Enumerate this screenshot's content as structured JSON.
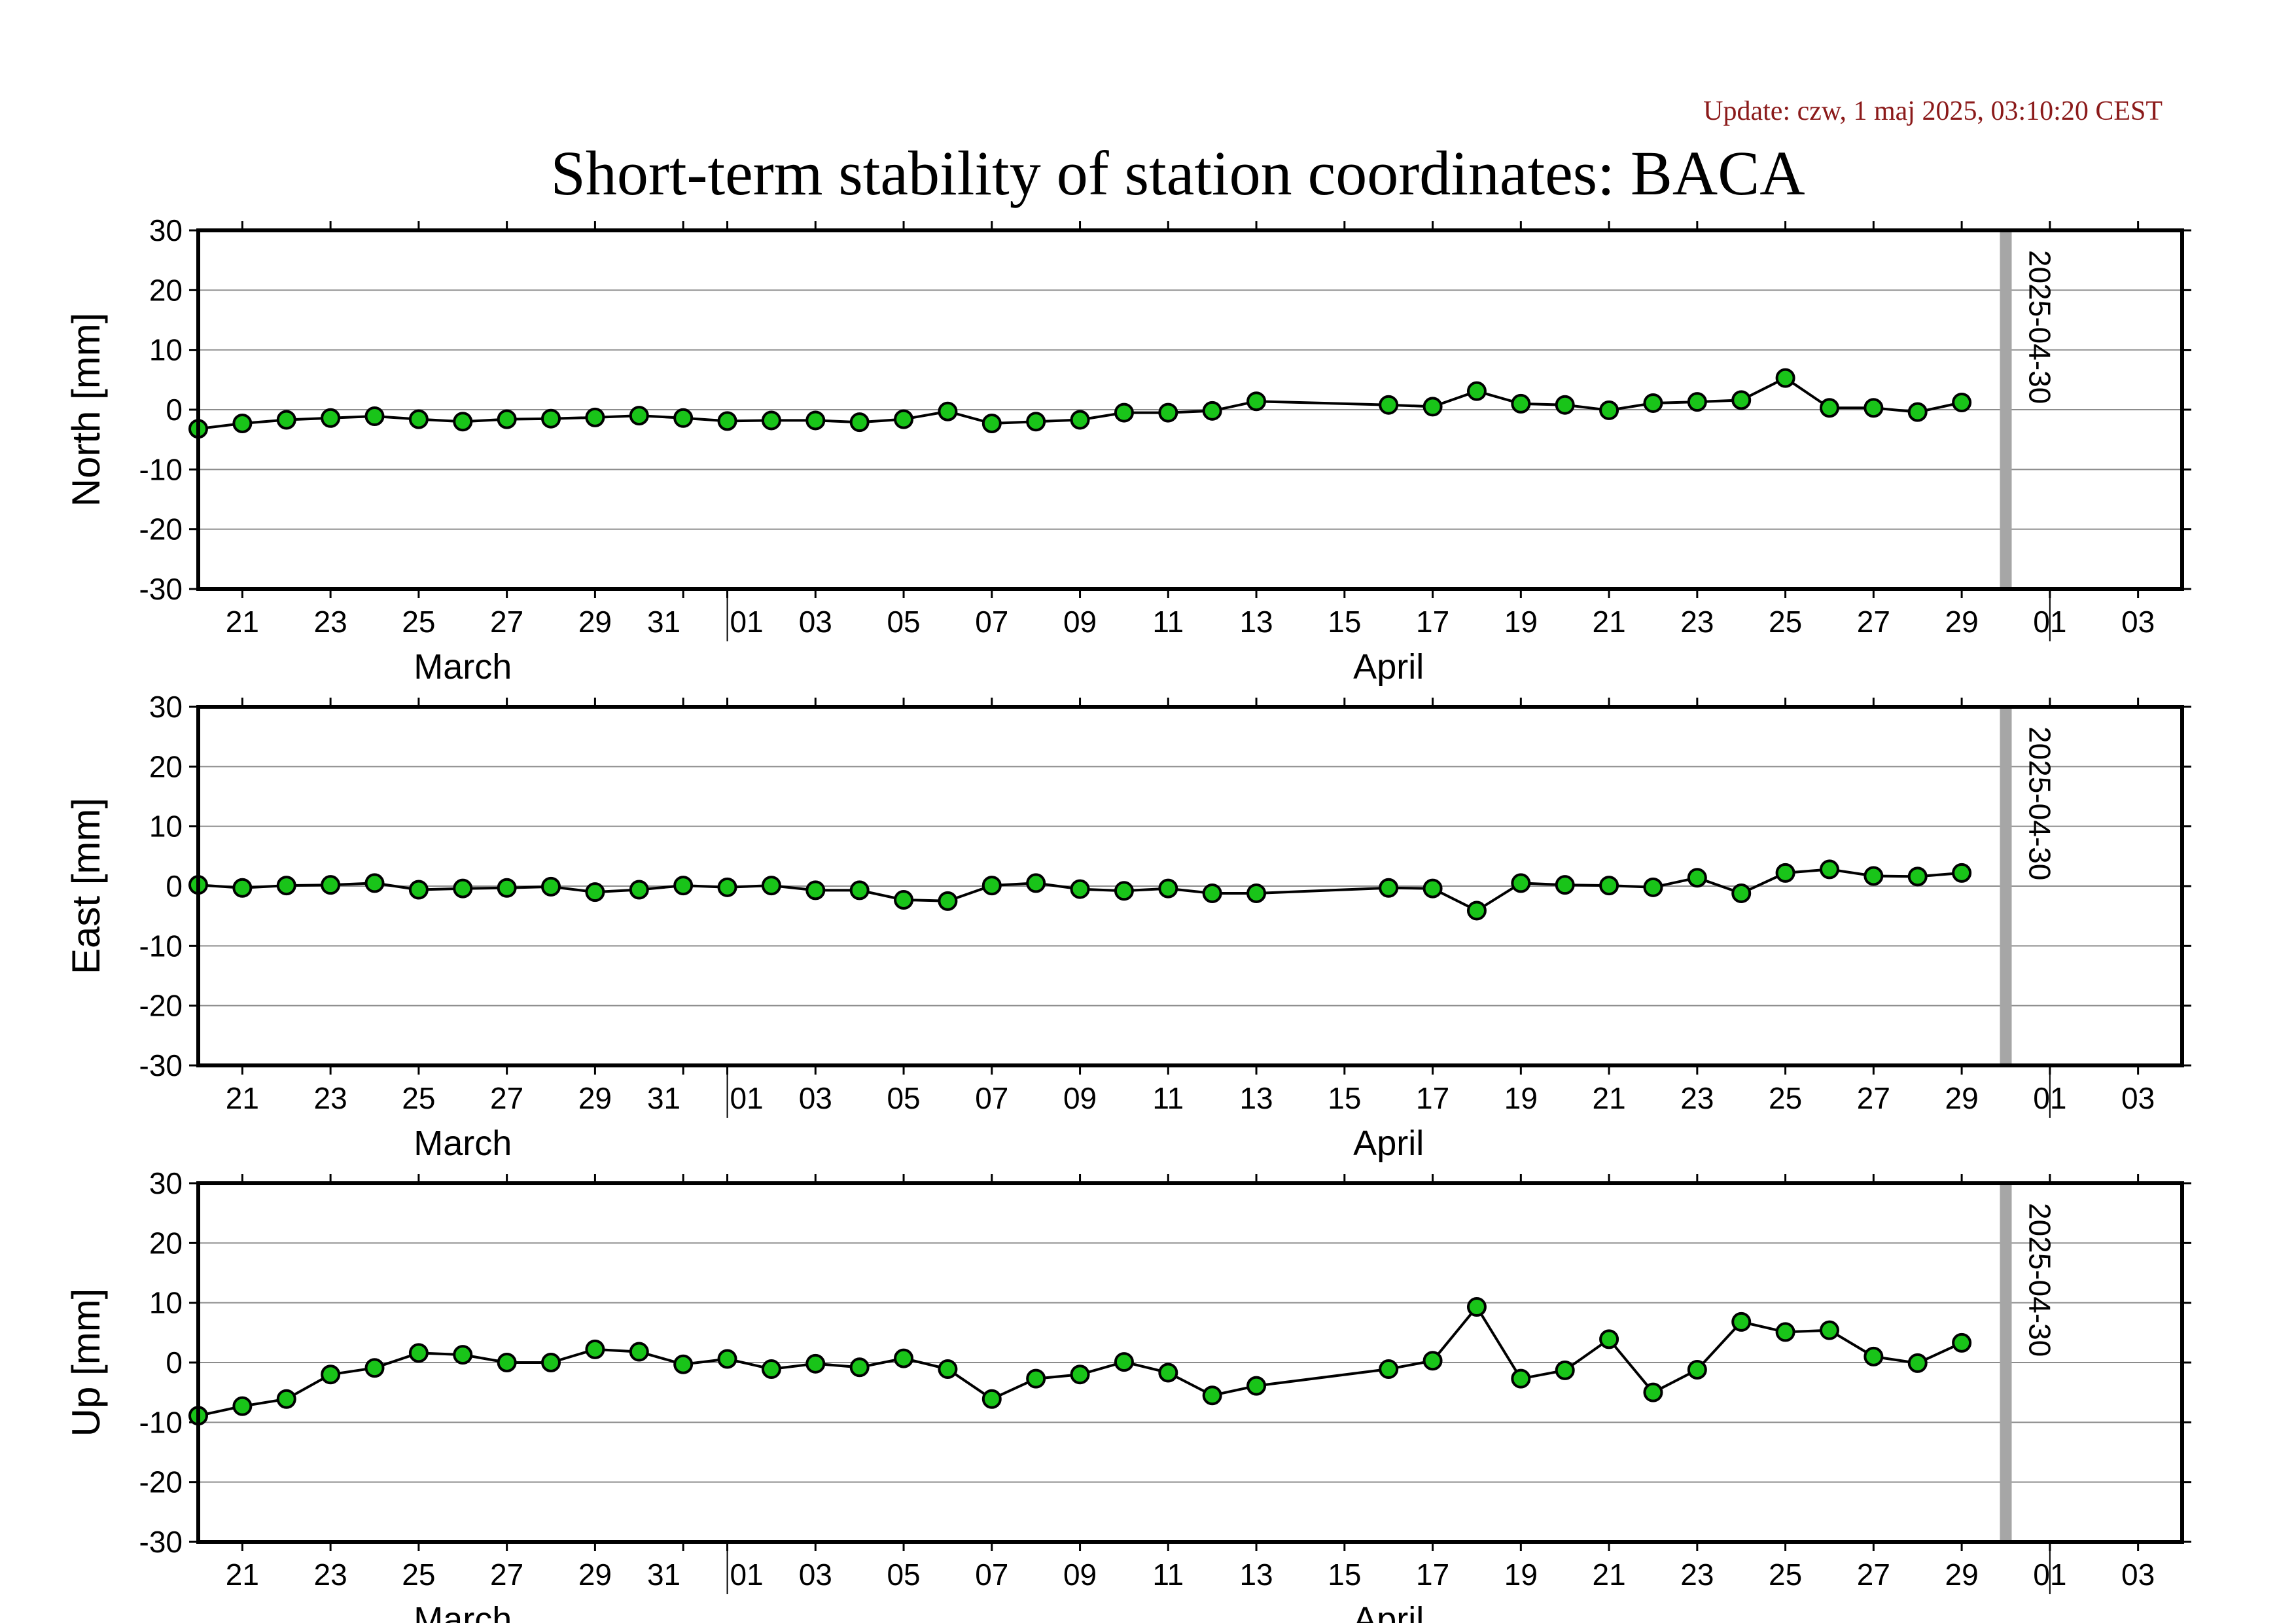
{
  "update_text": "Update: czw, 1 maj 2025, 03:10:20 CEST",
  "chart_data": {
    "type": "scatter",
    "title": "Short-term stability of station coordinates: BACA",
    "x_axis": {
      "range": [
        "2025-03-20",
        "2025-05-04"
      ],
      "tick_labels": [
        {
          "date": "2025-03-21",
          "label": "21"
        },
        {
          "date": "2025-03-23",
          "label": "23"
        },
        {
          "date": "2025-03-25",
          "label": "25"
        },
        {
          "date": "2025-03-27",
          "label": "27"
        },
        {
          "date": "2025-03-29",
          "label": "29"
        },
        {
          "date": "2025-03-31",
          "label": "31"
        },
        {
          "date": "2025-04-01",
          "label": "01"
        },
        {
          "date": "2025-04-03",
          "label": "03"
        },
        {
          "date": "2025-04-05",
          "label": "05"
        },
        {
          "date": "2025-04-07",
          "label": "07"
        },
        {
          "date": "2025-04-09",
          "label": "09"
        },
        {
          "date": "2025-04-11",
          "label": "11"
        },
        {
          "date": "2025-04-13",
          "label": "13"
        },
        {
          "date": "2025-04-15",
          "label": "15"
        },
        {
          "date": "2025-04-17",
          "label": "17"
        },
        {
          "date": "2025-04-19",
          "label": "19"
        },
        {
          "date": "2025-04-21",
          "label": "21"
        },
        {
          "date": "2025-04-23",
          "label": "23"
        },
        {
          "date": "2025-04-25",
          "label": "25"
        },
        {
          "date": "2025-04-27",
          "label": "27"
        },
        {
          "date": "2025-04-29",
          "label": "29"
        },
        {
          "date": "2025-05-01",
          "label": "01"
        },
        {
          "date": "2025-05-03",
          "label": "03"
        }
      ],
      "month_labels": [
        {
          "date": "2025-03-26",
          "label": "March"
        },
        {
          "date": "2025-04-16",
          "label": "April"
        }
      ],
      "month_boundaries": [
        "2025-04-01",
        "2025-05-01"
      ]
    },
    "marker_date": "2025-04-30",
    "marker_label": "2025-04-30",
    "panels": [
      {
        "ylabel": "North [mm]",
        "ylim": [
          -30,
          30
        ],
        "yticks": [
          30,
          20,
          10,
          0,
          -10,
          -20,
          -30
        ],
        "grid": true,
        "points": [
          [
            "2025-03-20",
            -3.2
          ],
          [
            "2025-03-21",
            -2.3
          ],
          [
            "2025-03-22",
            -1.7
          ],
          [
            "2025-03-23",
            -1.4
          ],
          [
            "2025-03-24",
            -1.1
          ],
          [
            "2025-03-25",
            -1.6
          ],
          [
            "2025-03-26",
            -2.0
          ],
          [
            "2025-03-27",
            -1.6
          ],
          [
            "2025-03-28",
            -1.5
          ],
          [
            "2025-03-29",
            -1.3
          ],
          [
            "2025-03-30",
            -1.0
          ],
          [
            "2025-03-31",
            -1.4
          ],
          [
            "2025-04-01",
            -1.9
          ],
          [
            "2025-04-02",
            -1.8
          ],
          [
            "2025-04-03",
            -1.8
          ],
          [
            "2025-04-04",
            -2.1
          ],
          [
            "2025-04-05",
            -1.6
          ],
          [
            "2025-04-06",
            -0.3
          ],
          [
            "2025-04-07",
            -2.3
          ],
          [
            "2025-04-08",
            -2.0
          ],
          [
            "2025-04-09",
            -1.7
          ],
          [
            "2025-04-10",
            -0.5
          ],
          [
            "2025-04-11",
            -0.5
          ],
          [
            "2025-04-12",
            -0.2
          ],
          [
            "2025-04-13",
            1.4
          ],
          [
            "2025-04-16",
            0.8
          ],
          [
            "2025-04-17",
            0.5
          ],
          [
            "2025-04-18",
            3.1
          ],
          [
            "2025-04-19",
            1.0
          ],
          [
            "2025-04-20",
            0.8
          ],
          [
            "2025-04-21",
            -0.1
          ],
          [
            "2025-04-22",
            1.1
          ],
          [
            "2025-04-23",
            1.3
          ],
          [
            "2025-04-24",
            1.6
          ],
          [
            "2025-04-25",
            5.3
          ],
          [
            "2025-04-26",
            0.3
          ],
          [
            "2025-04-27",
            0.3
          ],
          [
            "2025-04-28",
            -0.4
          ],
          [
            "2025-04-29",
            1.2
          ]
        ]
      },
      {
        "ylabel": "East [mm]",
        "ylim": [
          -30,
          30
        ],
        "yticks": [
          30,
          20,
          10,
          0,
          -10,
          -20,
          -30
        ],
        "grid": true,
        "points": [
          [
            "2025-03-20",
            0.2
          ],
          [
            "2025-03-21",
            -0.3
          ],
          [
            "2025-03-22",
            0.1
          ],
          [
            "2025-03-23",
            0.2
          ],
          [
            "2025-03-24",
            0.5
          ],
          [
            "2025-03-25",
            -0.6
          ],
          [
            "2025-03-26",
            -0.4
          ],
          [
            "2025-03-27",
            -0.3
          ],
          [
            "2025-03-28",
            -0.1
          ],
          [
            "2025-03-29",
            -1.0
          ],
          [
            "2025-03-30",
            -0.6
          ],
          [
            "2025-03-31",
            0.1
          ],
          [
            "2025-04-01",
            -0.2
          ],
          [
            "2025-04-02",
            0.1
          ],
          [
            "2025-04-03",
            -0.7
          ],
          [
            "2025-04-04",
            -0.7
          ],
          [
            "2025-04-05",
            -2.3
          ],
          [
            "2025-04-06",
            -2.5
          ],
          [
            "2025-04-07",
            0.1
          ],
          [
            "2025-04-08",
            0.5
          ],
          [
            "2025-04-09",
            -0.5
          ],
          [
            "2025-04-10",
            -0.8
          ],
          [
            "2025-04-11",
            -0.4
          ],
          [
            "2025-04-12",
            -1.2
          ],
          [
            "2025-04-13",
            -1.2
          ],
          [
            "2025-04-16",
            -0.3
          ],
          [
            "2025-04-17",
            -0.4
          ],
          [
            "2025-04-18",
            -4.1
          ],
          [
            "2025-04-19",
            0.5
          ],
          [
            "2025-04-20",
            0.2
          ],
          [
            "2025-04-21",
            0.1
          ],
          [
            "2025-04-22",
            -0.2
          ],
          [
            "2025-04-23",
            1.4
          ],
          [
            "2025-04-24",
            -1.2
          ],
          [
            "2025-04-25",
            2.2
          ],
          [
            "2025-04-26",
            2.8
          ],
          [
            "2025-04-27",
            1.7
          ],
          [
            "2025-04-28",
            1.6
          ],
          [
            "2025-04-29",
            2.2
          ]
        ]
      },
      {
        "ylabel": "Up [mm]",
        "ylim": [
          -30,
          30
        ],
        "yticks": [
          30,
          20,
          10,
          0,
          -10,
          -20,
          -30
        ],
        "grid": true,
        "points": [
          [
            "2025-03-20",
            -8.9
          ],
          [
            "2025-03-21",
            -7.3
          ],
          [
            "2025-03-22",
            -6.1
          ],
          [
            "2025-03-23",
            -2.0
          ],
          [
            "2025-03-24",
            -0.9
          ],
          [
            "2025-03-25",
            1.6
          ],
          [
            "2025-03-26",
            1.3
          ],
          [
            "2025-03-27",
            0.0
          ],
          [
            "2025-03-28",
            0.0
          ],
          [
            "2025-03-29",
            2.2
          ],
          [
            "2025-03-30",
            1.8
          ],
          [
            "2025-03-31",
            -0.3
          ],
          [
            "2025-04-01",
            0.6
          ],
          [
            "2025-04-02",
            -1.1
          ],
          [
            "2025-04-03",
            -0.2
          ],
          [
            "2025-04-04",
            -0.8
          ],
          [
            "2025-04-05",
            0.7
          ],
          [
            "2025-04-06",
            -1.1
          ],
          [
            "2025-04-07",
            -6.1
          ],
          [
            "2025-04-08",
            -2.7
          ],
          [
            "2025-04-09",
            -2.0
          ],
          [
            "2025-04-10",
            0.1
          ],
          [
            "2025-04-11",
            -1.7
          ],
          [
            "2025-04-12",
            -5.5
          ],
          [
            "2025-04-13",
            -3.9
          ],
          [
            "2025-04-16",
            -1.1
          ],
          [
            "2025-04-17",
            0.3
          ],
          [
            "2025-04-18",
            9.3
          ],
          [
            "2025-04-19",
            -2.7
          ],
          [
            "2025-04-20",
            -1.3
          ],
          [
            "2025-04-21",
            3.9
          ],
          [
            "2025-04-22",
            -5.0
          ],
          [
            "2025-04-23",
            -1.2
          ],
          [
            "2025-04-24",
            6.8
          ],
          [
            "2025-04-25",
            5.1
          ],
          [
            "2025-04-26",
            5.4
          ],
          [
            "2025-04-27",
            1.0
          ],
          [
            "2025-04-28",
            -0.1
          ],
          [
            "2025-04-29",
            3.3
          ]
        ]
      }
    ],
    "colors": {
      "marker_fill": "#19c419",
      "marker_stroke": "#000000",
      "line": "#000000",
      "grid": "#8c8c8c",
      "date_marker": "#a6a6a6",
      "update_text": "#8b1a1a"
    }
  }
}
